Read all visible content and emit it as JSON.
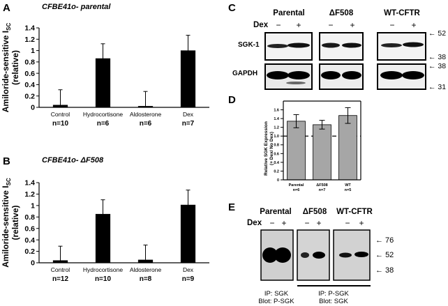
{
  "panels": {
    "A": {
      "letter": "A",
      "subtitle": "CFBE41o- parental"
    },
    "B": {
      "letter": "B",
      "subtitle_prefix": "CFBE41o- ",
      "subtitle_mut": "ΔF508"
    },
    "C": {
      "letter": "C"
    },
    "D": {
      "letter": "D"
    },
    "E": {
      "letter": "E"
    }
  },
  "ylabel": {
    "main": "Amiloride-sensitive I",
    "sub": "SC",
    "line2": "(relative)"
  },
  "chart_data": [
    {
      "id": "A",
      "type": "bar",
      "categories": [
        "Control",
        "Hydrocortisone",
        "Aldosterone",
        "Dex"
      ],
      "n_labels": [
        "n=10",
        "n=6",
        "n=6",
        "n=7"
      ],
      "values": [
        0.04,
        0.86,
        0.02,
        1.0
      ],
      "errors": [
        0.27,
        0.26,
        0.26,
        0.27
      ],
      "ylim": [
        0,
        1.4
      ],
      "yticks": [
        "0",
        "0.2",
        "0.4",
        "0.6",
        "0.8",
        "1",
        "1.2",
        "1.4"
      ]
    },
    {
      "id": "B",
      "type": "bar",
      "categories": [
        "Control",
        "Hydrocortisone",
        "Aldosterone",
        "Dex"
      ],
      "n_labels": [
        "n=12",
        "n=10",
        "n=8",
        "n=9"
      ],
      "values": [
        0.04,
        0.85,
        0.05,
        1.01
      ],
      "errors": [
        0.25,
        0.25,
        0.26,
        0.26
      ],
      "ylim": [
        0,
        1.4
      ],
      "yticks": [
        "0",
        "0.2",
        "0.4",
        "0.6",
        "0.8",
        "1",
        "1.2",
        "1.4"
      ]
    },
    {
      "id": "D",
      "type": "bar",
      "categories": [
        "Parental",
        "ΔF508",
        "WT"
      ],
      "n_labels": [
        "n=6",
        "n=7",
        "n=5"
      ],
      "values": [
        1.34,
        1.26,
        1.47
      ],
      "errors": [
        0.15,
        0.1,
        0.18
      ],
      "ylim": [
        0,
        1.8
      ],
      "reference_line": 1.0,
      "yticks": [
        "0",
        "0.2",
        "0.4",
        "0.6",
        "0.8",
        "1.0",
        "1.2",
        "1.4",
        "1.6"
      ],
      "ylabel_line1": "Relative SGK Expression",
      "ylabel_line2": "(+ Dex/ No Dex)"
    }
  ],
  "blotC": {
    "groups": [
      "Parental",
      "ΔF508",
      "WT-CFTR"
    ],
    "dex_label": "Dex",
    "minus": "−",
    "plus": "+",
    "row_labels": [
      "SGK-1",
      "GAPDH"
    ],
    "markers": [
      "← 52",
      "← 38",
      "← 38",
      "← 31"
    ]
  },
  "blotE": {
    "groups": [
      "Parental",
      "ΔF508",
      "WT-CFTR"
    ],
    "dex_label": "Dex",
    "minus": "−",
    "plus": "+",
    "markers": [
      "← 76",
      "52",
      "← 38"
    ],
    "footer_left": [
      "IP: SGK",
      "Blot: P-SGK"
    ],
    "footer_right": [
      "IP: P-SGK",
      "Blot: SGK"
    ]
  }
}
